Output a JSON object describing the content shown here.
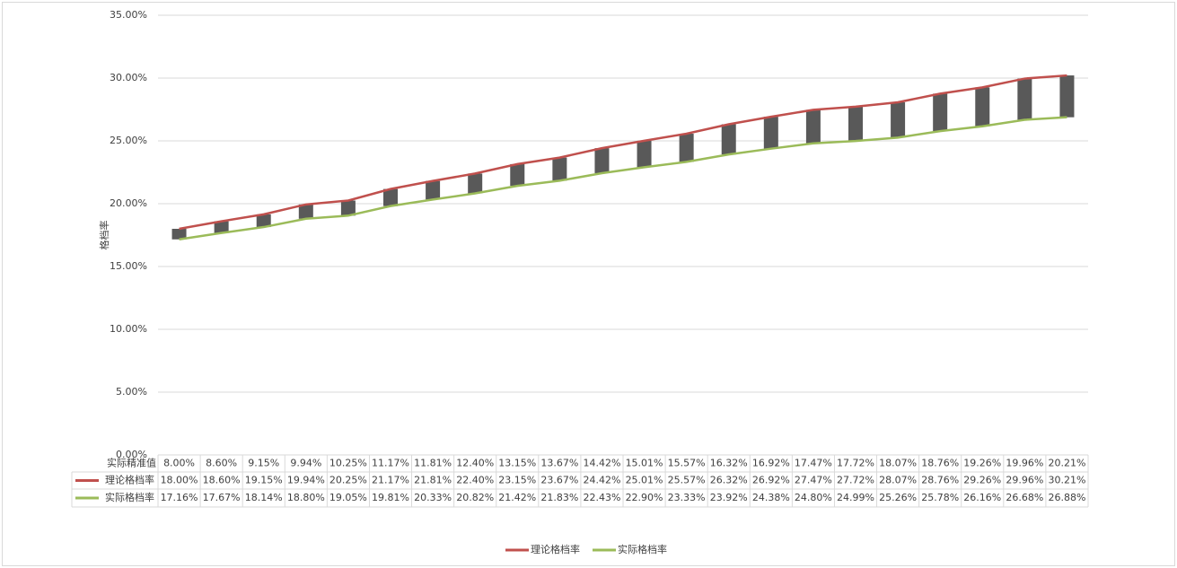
{
  "chart_data": {
    "type": "line",
    "y_label": "格档率",
    "x_label": "实际精准值",
    "categories": [
      "8.00%",
      "8.60%",
      "9.15%",
      "9.94%",
      "10.25%",
      "11.17%",
      "11.81%",
      "12.40%",
      "13.15%",
      "13.67%",
      "14.42%",
      "15.01%",
      "15.57%",
      "16.32%",
      "16.92%",
      "17.47%",
      "17.72%",
      "18.07%",
      "18.76%",
      "19.26%",
      "19.96%",
      "20.21%"
    ],
    "series": [
      {
        "name": "理论格档率",
        "color": "#c0504d",
        "values": [
          18.0,
          18.6,
          19.15,
          19.94,
          20.25,
          21.17,
          21.81,
          22.4,
          23.15,
          23.67,
          24.42,
          25.01,
          25.57,
          26.32,
          26.92,
          27.47,
          27.72,
          28.07,
          28.76,
          29.26,
          29.96,
          30.21
        ],
        "value_labels": [
          "18.00%",
          "18.60%",
          "19.15%",
          "19.94%",
          "20.25%",
          "21.17%",
          "21.81%",
          "22.40%",
          "23.15%",
          "23.67%",
          "24.42%",
          "25.01%",
          "25.57%",
          "26.32%",
          "26.92%",
          "27.47%",
          "27.72%",
          "28.07%",
          "28.76%",
          "29.26%",
          "29.96%",
          "30.21%"
        ]
      },
      {
        "name": "实际格档率",
        "color": "#9bbb59",
        "values": [
          17.16,
          17.67,
          18.14,
          18.8,
          19.05,
          19.81,
          20.33,
          20.82,
          21.42,
          21.83,
          22.43,
          22.9,
          23.33,
          23.92,
          24.38,
          24.8,
          24.99,
          25.26,
          25.78,
          26.16,
          26.68,
          26.88
        ],
        "value_labels": [
          "17.16%",
          "17.67%",
          "18.14%",
          "18.80%",
          "19.05%",
          "19.81%",
          "20.33%",
          "20.82%",
          "21.42%",
          "21.83%",
          "22.43%",
          "22.90%",
          "23.33%",
          "23.92%",
          "24.38%",
          "24.80%",
          "24.99%",
          "25.26%",
          "25.78%",
          "26.16%",
          "26.68%",
          "26.88%"
        ]
      }
    ],
    "up_down_bars": true,
    "bar_color": "#595959",
    "ylim": [
      0,
      35
    ],
    "yticks": [
      {
        "value": 0,
        "label": "0.00%"
      },
      {
        "value": 5,
        "label": "5.00%"
      },
      {
        "value": 10,
        "label": "10.00%"
      },
      {
        "value": 15,
        "label": "15.00%"
      },
      {
        "value": 20,
        "label": "20.00%"
      },
      {
        "value": 25,
        "label": "25.00%"
      },
      {
        "value": 30,
        "label": "30.00%"
      },
      {
        "value": 35,
        "label": "35.00%"
      }
    ],
    "grid": true,
    "legend": "bottom"
  }
}
